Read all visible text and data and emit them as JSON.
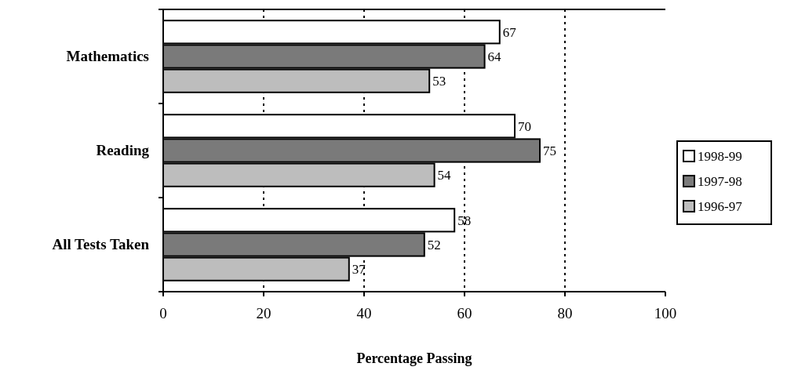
{
  "chart_data": {
    "type": "bar",
    "orientation": "horizontal",
    "xlabel": "Percentage  Passing",
    "categories": [
      "Mathematics",
      "Reading",
      "All Tests Taken"
    ],
    "series": [
      {
        "name": "1998-99",
        "color": "#ffffff",
        "values": [
          67,
          70,
          58
        ]
      },
      {
        "name": "1997-98",
        "color": "#7a7a7a",
        "values": [
          64,
          75,
          52
        ]
      },
      {
        "name": "1996-97",
        "color": "#bdbdbd",
        "values": [
          53,
          54,
          37
        ]
      }
    ],
    "xlim": [
      0,
      100
    ],
    "xticks": [
      0,
      20,
      40,
      60,
      80,
      100
    ],
    "grid": "x",
    "legend": "right",
    "data_labels": true
  }
}
